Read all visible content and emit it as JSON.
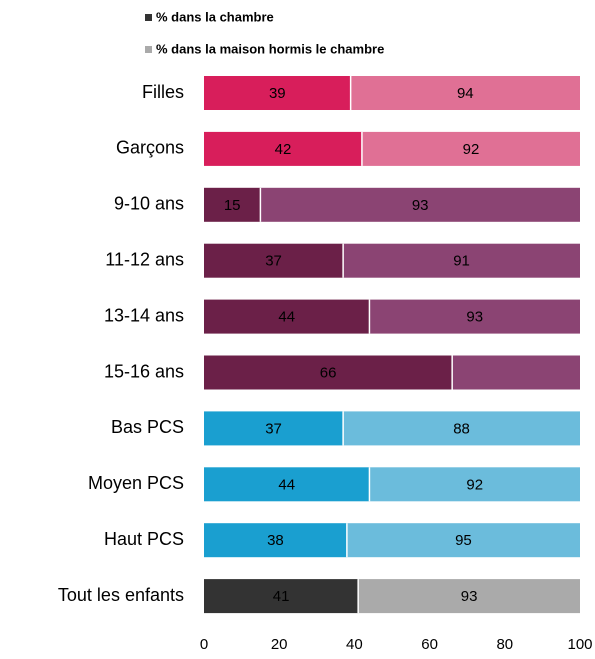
{
  "chart_data": {
    "type": "bar",
    "categories": [
      "Filles",
      "Garçons",
      "9-10 ans",
      "11-12 ans",
      "13-14 ans",
      "15-16 ans",
      "Bas PCS",
      "Moyen PCS",
      "Haut PCS",
      "Tout les enfants"
    ],
    "series": [
      {
        "name": "% dans la chambre",
        "color": "#333333",
        "values": [
          39,
          42,
          15,
          37,
          44,
          66,
          37,
          44,
          38,
          41
        ],
        "bar_colors": [
          "#d81e5b",
          "#d81e5b",
          "#6b2048",
          "#6b2048",
          "#6b2048",
          "#6b2048",
          "#1a9fd0",
          "#1a9fd0",
          "#1a9fd0",
          "#333333"
        ]
      },
      {
        "name": "% dans la maison hormis le chambre",
        "color": "#aaaaaa",
        "values": [
          94,
          92,
          93,
          91,
          93,
          null,
          88,
          92,
          95,
          93
        ],
        "bar_colors": [
          "#e07095",
          "#e07095",
          "#8b4473",
          "#8b4473",
          "#8b4473",
          "#8b4473",
          "#6bbcdc",
          "#6bbcdc",
          "#6bbcdc",
          "#aaaaaa"
        ]
      }
    ],
    "xlim": [
      0,
      100
    ],
    "xticks": [
      0,
      20,
      40,
      60,
      80,
      100
    ]
  }
}
